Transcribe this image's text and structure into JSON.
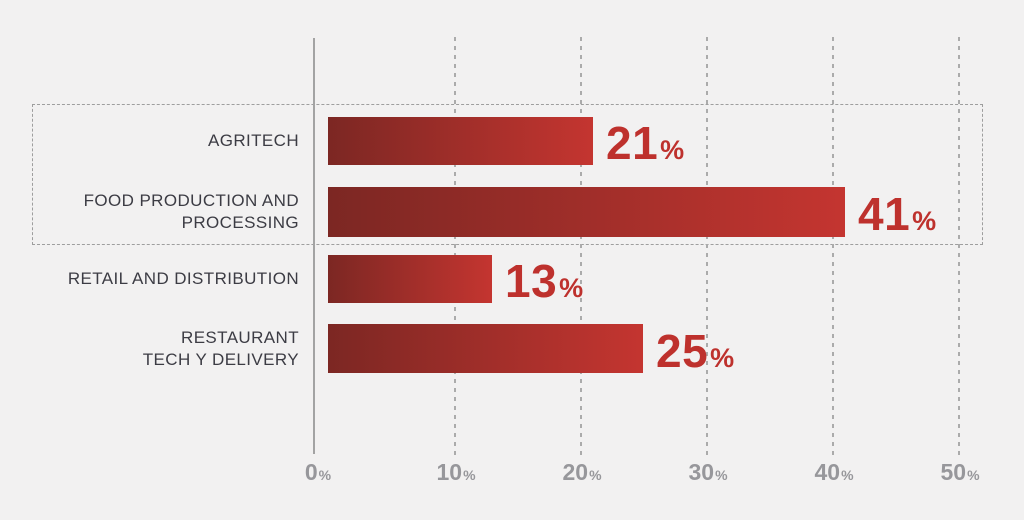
{
  "chart_data": {
    "type": "bar",
    "orientation": "horizontal",
    "unit": "%",
    "categories": [
      "AGRITECH",
      "FOOD PRODUCTION AND PROCESSING",
      "RETAIL AND DISTRIBUTION",
      "RESTAURANT TECH Y DELIVERY"
    ],
    "rows": [
      {
        "label": "AGRITECH",
        "label_lines": [
          "AGRITECH"
        ],
        "value": 21,
        "value_label": "21"
      },
      {
        "label": "FOOD PRODUCTION AND PROCESSING",
        "label_lines": [
          "FOOD PRODUCTION AND",
          "PROCESSING"
        ],
        "value": 41,
        "value_label": "41"
      },
      {
        "label": "RETAIL AND DISTRIBUTION",
        "label_lines": [
          "RETAIL AND DISTRIBUTION"
        ],
        "value": 13,
        "value_label": "13"
      },
      {
        "label": "RESTAURANT TECH Y DELIVERY",
        "label_lines": [
          "RESTAURANT",
          "TECH Y DELIVERY"
        ],
        "value": 25,
        "value_label": "25"
      }
    ],
    "xlabel": "",
    "ylabel": "",
    "xlim": [
      0,
      52
    ],
    "ticks": [
      {
        "value": 0,
        "label": "0"
      },
      {
        "value": 10,
        "label": "10"
      },
      {
        "value": 20,
        "label": "20"
      },
      {
        "value": 30,
        "label": "30"
      },
      {
        "value": 40,
        "label": "40"
      },
      {
        "value": 50,
        "label": "50"
      }
    ],
    "grid": "dashed-vertical",
    "legend": "none",
    "highlighted_rows": [
      "AGRITECH",
      "FOOD PRODUCTION AND PROCESSING"
    ],
    "colors": {
      "background": "#f2f1f1",
      "bar_gradient_start": "#7c2723",
      "bar_gradient_end": "#c43530",
      "value_text": "#be312d",
      "category_text": "#3c3c44",
      "axis_text": "#97979b",
      "grid_line": "#ababab",
      "highlight_border": "#9e9e9e"
    }
  }
}
